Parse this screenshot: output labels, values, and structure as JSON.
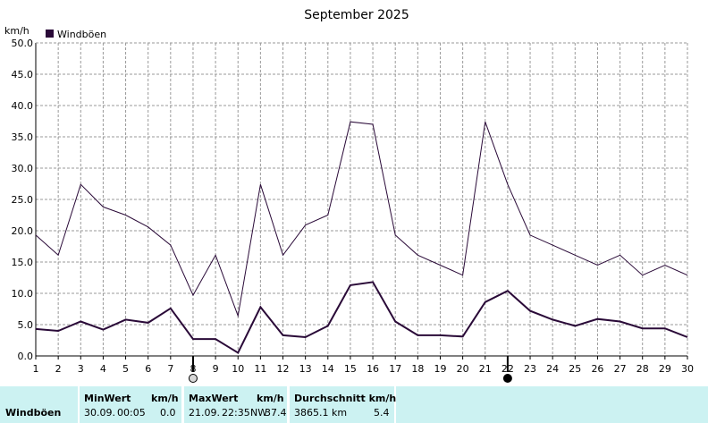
{
  "chart_data": {
    "type": "line",
    "title": "September 2025",
    "ylabel": "km/h",
    "xlabel": "",
    "grid": true,
    "legend_position": "top-left",
    "ylim": [
      0,
      50
    ],
    "xlim": [
      1,
      30
    ],
    "yticks": [
      "0.0",
      "5.0",
      "10.0",
      "15.0",
      "20.0",
      "25.0",
      "30.0",
      "35.0",
      "40.0",
      "45.0",
      "50.0"
    ],
    "x": [
      1,
      2,
      3,
      4,
      5,
      6,
      7,
      8,
      9,
      10,
      11,
      12,
      13,
      14,
      15,
      16,
      17,
      18,
      19,
      20,
      21,
      22,
      23,
      24,
      25,
      26,
      27,
      28,
      29,
      30
    ],
    "series": [
      {
        "name": "Windböen",
        "color": "#2a0a38",
        "values": [
          19.3,
          16.1,
          27.4,
          23.8,
          22.5,
          20.6,
          17.7,
          9.7,
          16.1,
          6.4,
          27.4,
          16.1,
          20.9,
          22.5,
          37.4,
          37.0,
          19.3,
          16.1,
          14.5,
          12.9,
          37.4,
          27.4,
          19.3,
          17.7,
          16.1,
          14.5,
          16.1,
          12.9,
          14.5,
          12.9
        ]
      },
      {
        "name": "",
        "color": "#2a0a38",
        "values": [
          4.3,
          4.0,
          5.5,
          4.2,
          5.8,
          5.3,
          7.6,
          2.7,
          2.7,
          0.5,
          7.8,
          3.3,
          3.0,
          4.8,
          11.3,
          11.8,
          5.5,
          3.3,
          3.3,
          3.1,
          8.6,
          10.4,
          7.2,
          5.8,
          4.8,
          5.9,
          5.5,
          4.4,
          4.4,
          3.0
        ]
      }
    ],
    "markers": [
      {
        "x": 8,
        "icon": "full-moon-icon"
      },
      {
        "x": 22,
        "icon": "new-moon-icon"
      }
    ]
  },
  "footer": {
    "row_label": "Windböen",
    "min": {
      "header": "MinWert",
      "unit": "km/h",
      "date": "30.09.",
      "time": "00:05",
      "value": "0.0"
    },
    "max": {
      "header": "MaxWert",
      "unit": "km/h",
      "date": "21.09.",
      "time": "22:35",
      "dir": "NW",
      "value": "37.4"
    },
    "avg": {
      "header": "Durchschnitt km/h",
      "distance": "3865.1 km",
      "value": "5.4"
    }
  }
}
